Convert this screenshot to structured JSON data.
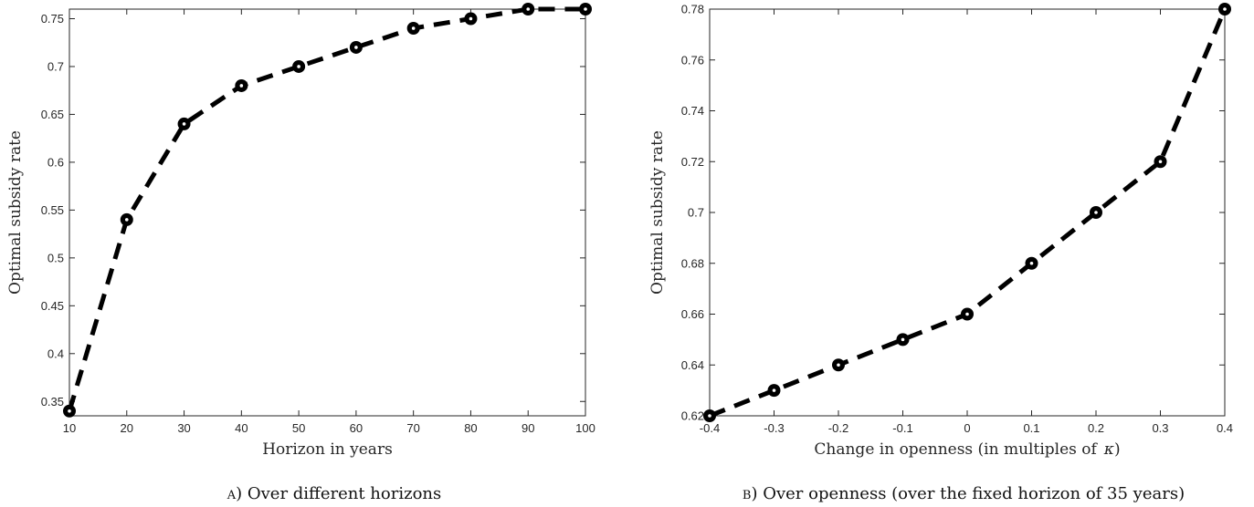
{
  "chart_data": [
    {
      "type": "line",
      "panel_letter": "a",
      "caption": ") Over different horizons",
      "xlabel": "Horizon in years",
      "ylabel": "Optimal subsidy rate",
      "xlim": [
        10,
        100
      ],
      "ylim": [
        0.335,
        0.76
      ],
      "xticks": [
        10,
        20,
        30,
        40,
        50,
        60,
        70,
        80,
        90,
        100
      ],
      "xtick_labels": [
        "10",
        "20",
        "30",
        "40",
        "50",
        "60",
        "70",
        "80",
        "90",
        "100"
      ],
      "yticks": [
        0.35,
        0.4,
        0.45,
        0.5,
        0.55,
        0.6,
        0.65,
        0.7,
        0.75
      ],
      "ytick_labels": [
        "0.35",
        "0.4",
        "0.45",
        "0.5",
        "0.55",
        "0.6",
        "0.65",
        "0.7",
        "0.75"
      ],
      "grid": false,
      "series": [
        {
          "x": [
            10,
            20,
            30,
            40,
            50,
            60,
            70,
            80,
            90,
            100
          ],
          "y": [
            0.34,
            0.54,
            0.64,
            0.68,
            0.7,
            0.72,
            0.74,
            0.75,
            0.76,
            0.76
          ],
          "style": "dashed",
          "marker": "circle",
          "color": "#000000"
        }
      ]
    },
    {
      "type": "line",
      "panel_letter": "b",
      "caption": ") Over openness (over the fixed horizon of 35 years)",
      "xlabel": "Change in openness (in multiples of",
      "xlabel_symbol": "κ",
      "xlabel_suffix": ")",
      "ylabel": "Optimal subsidy rate",
      "xlim": [
        -0.4,
        0.4
      ],
      "ylim": [
        0.62,
        0.78
      ],
      "xticks": [
        -0.4,
        -0.3,
        -0.2,
        -0.1,
        0,
        0.1,
        0.2,
        0.3,
        0.4
      ],
      "xtick_labels": [
        "-0.4",
        "-0.3",
        "-0.2",
        "-0.1",
        "0",
        "0.1",
        "0.2",
        "0.3",
        "0.4"
      ],
      "yticks": [
        0.62,
        0.64,
        0.66,
        0.68,
        0.7,
        0.72,
        0.74,
        0.76,
        0.78
      ],
      "ytick_labels": [
        "0.62",
        "0.64",
        "0.66",
        "0.68",
        "0.7",
        "0.72",
        "0.74",
        "0.76",
        "0.78"
      ],
      "grid": false,
      "series": [
        {
          "x": [
            -0.4,
            -0.3,
            -0.2,
            -0.1,
            0,
            0.1,
            0.2,
            0.3,
            0.4
          ],
          "y": [
            0.62,
            0.63,
            0.64,
            0.65,
            0.66,
            0.68,
            0.7,
            0.72,
            0.78
          ],
          "style": "dashed",
          "marker": "circle",
          "color": "#000000"
        }
      ]
    }
  ]
}
